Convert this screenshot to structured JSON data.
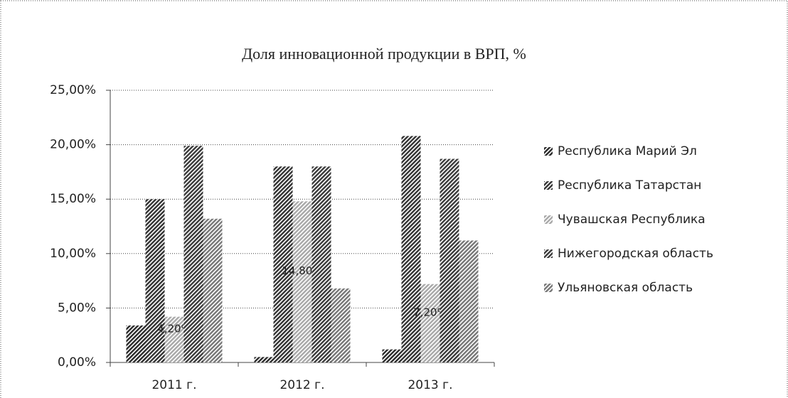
{
  "chart_data": {
    "type": "bar",
    "title": "Доля инновационной продукции в ВРП,  %",
    "categories": [
      "2011 г.",
      "2012 г.",
      "2013 г."
    ],
    "series": [
      {
        "name": "Республика Марий Эл",
        "color": "#2a2a2a",
        "values": [
          3.4,
          0.5,
          1.2
        ]
      },
      {
        "name": "Республика Татарстан",
        "color": "#333333",
        "values": [
          15.0,
          18.0,
          20.8
        ]
      },
      {
        "name": "Чувашская Республика",
        "color": "#a8a8a8",
        "values": [
          4.2,
          14.8,
          7.2
        ],
        "value_labels": [
          "4,20%",
          "14,80%",
          "7,20%"
        ]
      },
      {
        "name": "Нижегородская область",
        "color": "#3a3a3a",
        "values": [
          19.9,
          18.0,
          18.7
        ]
      },
      {
        "name": "Ульяновская область",
        "color": "#777777",
        "values": [
          13.2,
          6.8,
          11.2
        ]
      }
    ],
    "ylim": [
      0,
      25
    ],
    "yticks": [
      {
        "value": 0,
        "label": "0,00%"
      },
      {
        "value": 5,
        "label": "5,00%"
      },
      {
        "value": 10,
        "label": "10,00%"
      },
      {
        "value": 15,
        "label": "15,00%"
      },
      {
        "value": 20,
        "label": "20,00%"
      },
      {
        "value": 25,
        "label": "25,00%"
      }
    ],
    "grid": true,
    "legend": "right"
  }
}
